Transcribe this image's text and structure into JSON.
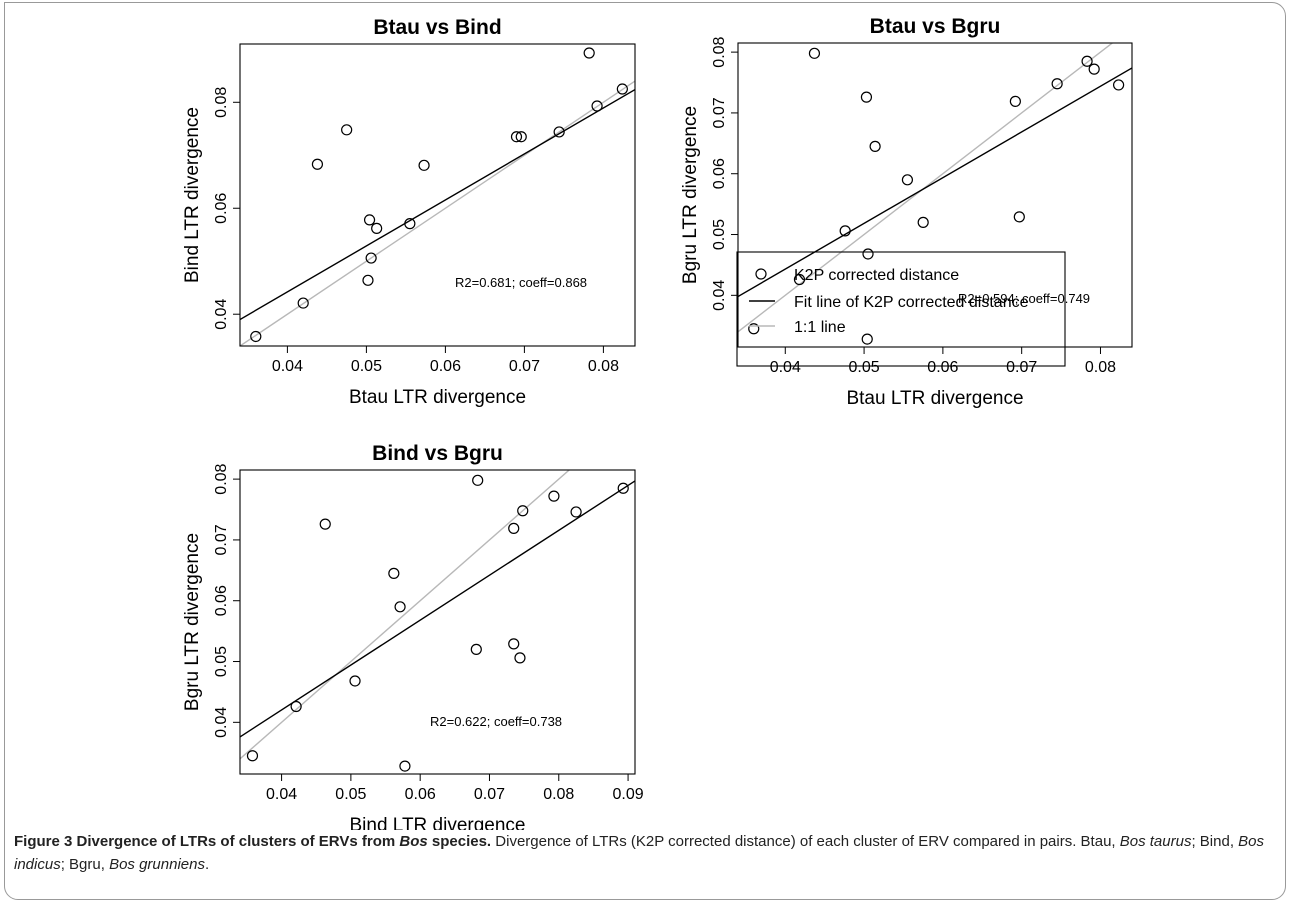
{
  "chart_data": [
    {
      "type": "scatter",
      "title": "Btau vs Bind",
      "xlabel": "Btau LTR divergence",
      "ylabel": "Bind LTR divergence",
      "xlim": [
        0.034,
        0.084
      ],
      "ylim": [
        0.034,
        0.091
      ],
      "xticks": [
        "0.04",
        "0.05",
        "0.06",
        "0.07",
        "0.08"
      ],
      "yticks": [
        "0.04",
        "0.06",
        "0.08"
      ],
      "points": {
        "x": [
          0.036,
          0.042,
          0.0438,
          0.0475,
          0.0502,
          0.0504,
          0.0506,
          0.0513,
          0.0555,
          0.0573,
          0.069,
          0.0696,
          0.0744,
          0.0782,
          0.0792,
          0.0824
        ],
        "y": [
          0.0358,
          0.0421,
          0.0683,
          0.0748,
          0.0464,
          0.0578,
          0.0506,
          0.0562,
          0.0571,
          0.0681,
          0.0735,
          0.0735,
          0.0744,
          0.0893,
          0.0793,
          0.0825
        ]
      },
      "fit_line": [
        [
          0.034,
          0.039
        ],
        [
          0.084,
          0.0824
        ]
      ],
      "one_to_one": [
        [
          0.034,
          0.034
        ],
        [
          0.084,
          0.084
        ]
      ],
      "annotation": "R2=0.681; coeff=0.868"
    },
    {
      "type": "scatter",
      "title": "Btau vs Bgru",
      "xlabel": "Btau LTR divergence",
      "ylabel": "Bgru LTR divergence",
      "xlim": [
        0.034,
        0.084
      ],
      "ylim": [
        0.0315,
        0.0815
      ],
      "xticks": [
        "0.04",
        "0.05",
        "0.06",
        "0.07",
        "0.08"
      ],
      "yticks": [
        "0.04",
        "0.05",
        "0.06",
        "0.07",
        "0.08"
      ],
      "points": {
        "x": [
          0.036,
          0.0418,
          0.0437,
          0.0476,
          0.0503,
          0.0504,
          0.0505,
          0.0514,
          0.0555,
          0.0575,
          0.0692,
          0.0697,
          0.0745,
          0.0783,
          0.0792,
          0.0823
        ],
        "y": [
          0.0345,
          0.0426,
          0.0798,
          0.0506,
          0.0726,
          0.0328,
          0.0468,
          0.0645,
          0.059,
          0.052,
          0.0719,
          0.0529,
          0.0748,
          0.0785,
          0.0772,
          0.0746
        ]
      },
      "fit_line": [
        [
          0.034,
          0.0398
        ],
        [
          0.084,
          0.0774
        ]
      ],
      "one_to_one": [
        [
          0.034,
          0.034
        ],
        [
          0.084,
          0.084
        ]
      ],
      "annotation": "R2=0.594; coeff=0.749"
    },
    {
      "type": "scatter",
      "title": "Bind vs Bgru",
      "xlabel": "Bind LTR divergence",
      "ylabel": "Bgru LTR divergence",
      "xlim": [
        0.034,
        0.091
      ],
      "ylim": [
        0.0315,
        0.0815
      ],
      "xticks": [
        "0.04",
        "0.05",
        "0.06",
        "0.07",
        "0.08",
        "0.09"
      ],
      "yticks": [
        "0.04",
        "0.05",
        "0.06",
        "0.07",
        "0.08"
      ],
      "points": {
        "x": [
          0.0358,
          0.0421,
          0.0463,
          0.0506,
          0.0562,
          0.0571,
          0.0578,
          0.0681,
          0.0683,
          0.0735,
          0.0735,
          0.0744,
          0.0748,
          0.0793,
          0.0825,
          0.0893
        ],
        "y": [
          0.0345,
          0.0426,
          0.0726,
          0.0468,
          0.0645,
          0.059,
          0.0328,
          0.052,
          0.0798,
          0.0719,
          0.0529,
          0.0506,
          0.0748,
          0.0772,
          0.0746,
          0.0785
        ]
      },
      "fit_line": [
        [
          0.034,
          0.0376
        ],
        [
          0.091,
          0.0797
        ]
      ],
      "one_to_one": [
        [
          0.034,
          0.034
        ],
        [
          0.091,
          0.091
        ]
      ],
      "annotation": "R2=0.622; coeff=0.738"
    }
  ],
  "legend": {
    "items": [
      {
        "label": "K2P corrected distance",
        "kind": "circle"
      },
      {
        "label": "Fit line of K2P corrected distance",
        "kind": "line",
        "color": "#000000"
      },
      {
        "label": "1:1 line",
        "kind": "line",
        "color": "#b8b8b8"
      }
    ]
  },
  "caption": {
    "title": "Figure 3 Divergence of LTRs of clusters of ERVs from ",
    "title_italic": "Bos",
    "title_end": " species.",
    "body_1": " Divergence of LTRs (K2P corrected distance) of each cluster of ERV compared in pairs. Btau, ",
    "btau": "Bos taurus",
    "body_2": "; Bind, ",
    "bind": "Bos indicus",
    "body_3": "; Bgru, ",
    "bgru": "Bos grunniens",
    "body_4": "."
  }
}
